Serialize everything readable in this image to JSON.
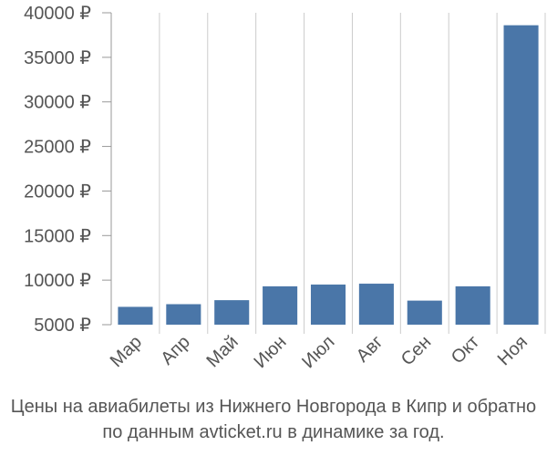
{
  "chart_data": {
    "type": "bar",
    "title": "",
    "xlabel": "",
    "ylabel": "",
    "categories": [
      "Мар",
      "Апр",
      "Май",
      "Июн",
      "Июл",
      "Авг",
      "Сен",
      "Окт",
      "Ноя"
    ],
    "series": [
      {
        "values": [
          7000,
          7300,
          7750,
          9300,
          9500,
          9600,
          7700,
          9300,
          38600
        ]
      }
    ],
    "ylim": [
      5000,
      40000
    ],
    "yticks": [
      5000,
      10000,
      15000,
      20000,
      25000,
      30000,
      35000,
      40000
    ],
    "ytick_labels": [
      "5000 ₽",
      "10000 ₽",
      "15000 ₽",
      "20000 ₽",
      "25000 ₽",
      "30000 ₽",
      "35000 ₽",
      "40000 ₽"
    ],
    "grid": "vertical",
    "bar_color": "#4a76a8",
    "grid_color": "#cccccc"
  },
  "caption": {
    "line1": "Цены на авиабилеты из Нижнего Новгорода в Кипр и обратно",
    "line2": "по данным avticket.ru в динамике за год."
  }
}
